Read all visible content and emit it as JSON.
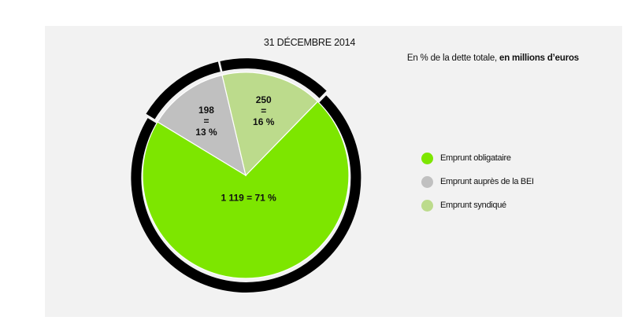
{
  "chart_data": {
    "type": "pie",
    "title": "31 DÉCEMBRE 2014",
    "subtitle_prefix": "En % de la dette totale, ",
    "subtitle_bold": "en millions d’euros",
    "slices": [
      {
        "name": "Emprunt obligataire",
        "value": 1119,
        "percent": 71,
        "label": "1 119 = 71 %",
        "color": "#7de600"
      },
      {
        "name": "Emprunt auprès de la BEI",
        "value": 198,
        "percent": 13,
        "label_lines": [
          "198",
          "=",
          "13 %"
        ],
        "color": "#c0c0c0"
      },
      {
        "name": "Emprunt syndiqué",
        "value": 250,
        "percent": 16,
        "label_lines": [
          "250",
          "=",
          "16 %"
        ],
        "color": "#bcdb8c"
      }
    ],
    "legend_position": "right",
    "outline_color": "#000000"
  }
}
